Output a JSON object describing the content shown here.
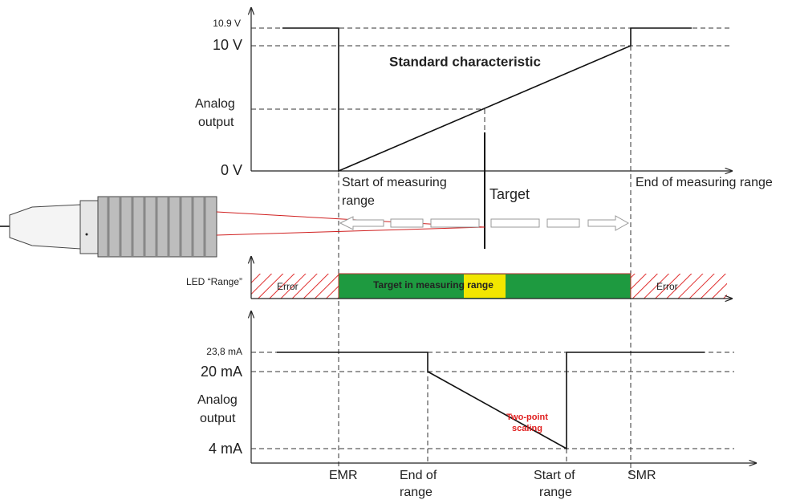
{
  "top": {
    "title": "Standard characteristic",
    "y_labels": [
      "10.9 V",
      "10 V",
      "0 V"
    ],
    "axis_label": [
      "Analog",
      "output"
    ],
    "start": [
      "Start of measuring",
      "range"
    ],
    "target": "Target",
    "end": "End of measuring range"
  },
  "led": {
    "label": "LED “Range”",
    "error_left": "Error",
    "error_right": "Error",
    "ok": "Target in measuring range"
  },
  "bottom": {
    "y_labels": [
      "23,8 mA",
      "20 mA",
      "4 mA"
    ],
    "axis_label": [
      "Analog",
      "output"
    ],
    "scaling": [
      "Two-point",
      "scaling"
    ],
    "x_labels": {
      "emr": "EMR",
      "end": [
        "End of",
        "range"
      ],
      "start": [
        "Start of",
        "range"
      ],
      "smr": "SMR"
    }
  }
}
